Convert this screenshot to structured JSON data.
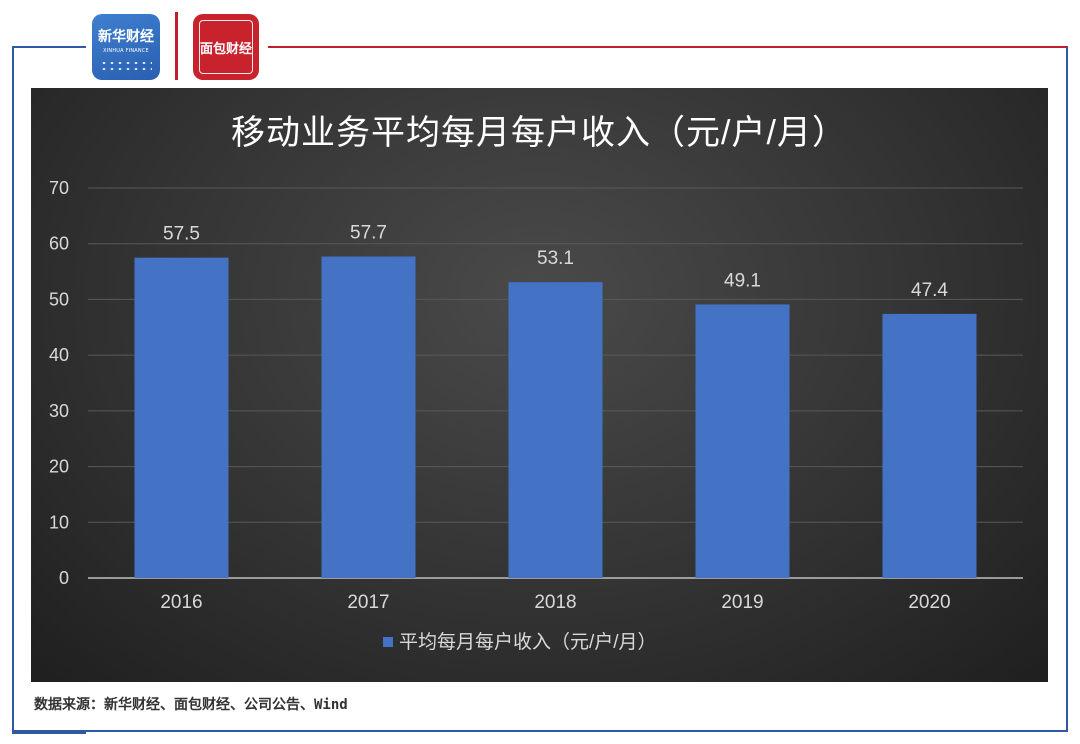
{
  "header": {
    "logo_left_name": "新华财经",
    "logo_left_sub": "XINHUA FINANCE",
    "logo_right_name": "面包财经"
  },
  "source_text": "数据来源：新华财经、面包财经、公司公告、Wind",
  "chart_data": {
    "type": "bar",
    "title": "移动业务平均每月每户收入（元/户/月）",
    "categories": [
      "2016",
      "2017",
      "2018",
      "2019",
      "2020"
    ],
    "series": [
      {
        "name": "平均每月每户收入（元/户/月）",
        "values": [
          57.5,
          57.7,
          53.1,
          49.1,
          47.4
        ],
        "color": "#4472c4"
      }
    ],
    "data_labels": [
      "57.5",
      "57.7",
      "53.1",
      "49.1",
      "47.4"
    ],
    "yticks": [
      "0",
      "10",
      "20",
      "30",
      "40",
      "50",
      "60",
      "70"
    ],
    "ylim": [
      0,
      70
    ],
    "grid": true,
    "legend_position": "bottom",
    "background": "#333333"
  }
}
